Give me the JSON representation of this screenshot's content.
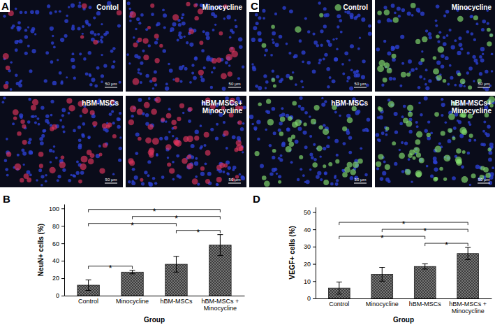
{
  "images": [
    {
      "title": "A",
      "scale_bar": "50 μm",
      "panels": [
        {
          "label": [
            "Contol"
          ]
        },
        {
          "label": [
            "Minocycline"
          ]
        },
        {
          "label": [
            "hBM-MSCs"
          ]
        },
        {
          "label": [
            "hBM-MSCs+",
            "Minocycline"
          ]
        }
      ]
    },
    {
      "title": "C",
      "scale_bar": "50 μm",
      "panels": [
        {
          "label": [
            "Control"
          ]
        },
        {
          "label": [
            "Minocycline"
          ]
        },
        {
          "label": [
            "hBM-MSCs"
          ]
        },
        {
          "label": [
            "hBM-MSCs+",
            "Minocycline"
          ]
        }
      ]
    }
  ],
  "chart_data": [
    {
      "type": "bar",
      "title": "B",
      "x_label": "Group",
      "y_label": "NeuN+ cells (%)",
      "categories": [
        "Control",
        "Minocycline",
        "hBM-MSCs",
        "hBM-MSCs + Minocycline"
      ],
      "values": [
        12,
        27,
        36,
        58
      ],
      "errors": [
        6,
        2,
        9,
        12
      ],
      "color": "#3c3c3c",
      "ylim": [
        0,
        105
      ],
      "yticks": [
        0,
        20,
        40,
        60,
        80,
        100
      ],
      "comparisons": [
        {
          "label": "*",
          "between": [
            0,
            1
          ]
        },
        {
          "label": "*",
          "between": [
            0,
            2
          ]
        },
        {
          "label": "*",
          "between": [
            0,
            3
          ]
        },
        {
          "label": "*",
          "between": [
            1,
            3
          ]
        },
        {
          "label": "*",
          "between": [
            2,
            3
          ]
        }
      ]
    },
    {
      "type": "bar",
      "title": "D",
      "x_label": "Group",
      "y_label": "VEGF+ cells (%)",
      "categories": [
        "Control",
        "Minocycline",
        "hBM-MSCs",
        "hBM-MSCs + Minocycline"
      ],
      "values": [
        6,
        14,
        18.5,
        26
      ],
      "errors": [
        3.5,
        4,
        1.5,
        3.5
      ],
      "color": "#3c3c3c",
      "ylim": [
        0,
        53
      ],
      "yticks": [
        0,
        10,
        20,
        30,
        40,
        50
      ],
      "comparisons": [
        {
          "label": "*",
          "between": [
            0,
            2
          ]
        },
        {
          "label": "*",
          "between": [
            0,
            3
          ]
        },
        {
          "label": "*",
          "between": [
            1,
            3
          ]
        },
        {
          "label": "*",
          "between": [
            2,
            3
          ]
        }
      ]
    }
  ]
}
